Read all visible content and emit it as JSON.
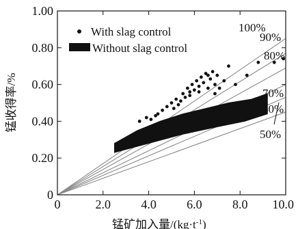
{
  "chart_data": {
    "type": "scatter",
    "xlabel": "锰矿加入量/(kg·t",
    "xlabel_sup": "-1",
    "xlabel_close": ")",
    "ylabel": "锰收得率/%",
    "xlim": [
      0,
      10
    ],
    "ylim": [
      0,
      1.0
    ],
    "x_ticks": [
      "0",
      "2.0",
      "4.0",
      "6.0",
      "8.0",
      "10.0"
    ],
    "y_ticks": [
      "0",
      "0.20",
      "0.40",
      "0.60",
      "0.80",
      "1.00"
    ],
    "x_tick_values": [
      0,
      2,
      4,
      6,
      8,
      10
    ],
    "y_tick_values": [
      0,
      0.2,
      0.4,
      0.6,
      0.8,
      1.0
    ],
    "legend": [
      {
        "label": "With slag control",
        "marker": "dot"
      },
      {
        "label": "Without slag control",
        "marker": "block"
      }
    ],
    "ratio_lines": [
      {
        "label": "100%",
        "end_y": 0.85
      },
      {
        "label": "90%",
        "end_y": 0.77
      },
      {
        "label": "80%",
        "end_y": 0.69
      },
      {
        "label": "70%",
        "end_y": 0.6
      },
      {
        "label": "60%",
        "end_y": 0.53
      },
      {
        "label": "50%",
        "end_y": 0.45
      }
    ],
    "series": [
      {
        "name": "With slag control",
        "points": [
          [
            3.6,
            0.4
          ],
          [
            3.9,
            0.42
          ],
          [
            4.1,
            0.41
          ],
          [
            4.4,
            0.44
          ],
          [
            4.6,
            0.46
          ],
          [
            4.8,
            0.48
          ],
          [
            5.0,
            0.5
          ],
          [
            5.1,
            0.47
          ],
          [
            5.2,
            0.52
          ],
          [
            5.4,
            0.51
          ],
          [
            5.5,
            0.55
          ],
          [
            5.6,
            0.53
          ],
          [
            5.7,
            0.58
          ],
          [
            5.8,
            0.56
          ],
          [
            5.9,
            0.6
          ],
          [
            6.0,
            0.57
          ],
          [
            6.1,
            0.62
          ],
          [
            6.2,
            0.59
          ],
          [
            6.3,
            0.64
          ],
          [
            6.4,
            0.61
          ],
          [
            6.5,
            0.66
          ],
          [
            6.6,
            0.58
          ],
          [
            6.7,
            0.63
          ],
          [
            6.8,
            0.67
          ],
          [
            6.9,
            0.6
          ],
          [
            7.0,
            0.65
          ],
          [
            7.3,
            0.62
          ],
          [
            7.5,
            0.7
          ],
          [
            7.8,
            0.6
          ],
          [
            8.3,
            0.65
          ],
          [
            8.8,
            0.72
          ],
          [
            9.5,
            0.72
          ],
          [
            9.9,
            0.74
          ],
          [
            5.3,
            0.49
          ],
          [
            5.8,
            0.54
          ],
          [
            6.2,
            0.56
          ],
          [
            6.9,
            0.55
          ],
          [
            4.3,
            0.43
          ],
          [
            6.6,
            0.65
          ],
          [
            7.1,
            0.58
          ]
        ]
      },
      {
        "name": "Without slag control",
        "band": {
          "x_start": 2.5,
          "x_end": 9.2,
          "lower": [
            [
              2.5,
              0.23
            ],
            [
              4.0,
              0.28
            ],
            [
              5.5,
              0.33
            ],
            [
              7.0,
              0.37
            ],
            [
              8.2,
              0.4
            ],
            [
              9.2,
              0.44
            ]
          ],
          "upper": [
            [
              2.5,
              0.28
            ],
            [
              3.5,
              0.35
            ],
            [
              4.5,
              0.4
            ],
            [
              5.5,
              0.44
            ],
            [
              6.5,
              0.47
            ],
            [
              7.5,
              0.5
            ],
            [
              8.5,
              0.52
            ],
            [
              9.2,
              0.55
            ]
          ]
        }
      }
    ]
  }
}
